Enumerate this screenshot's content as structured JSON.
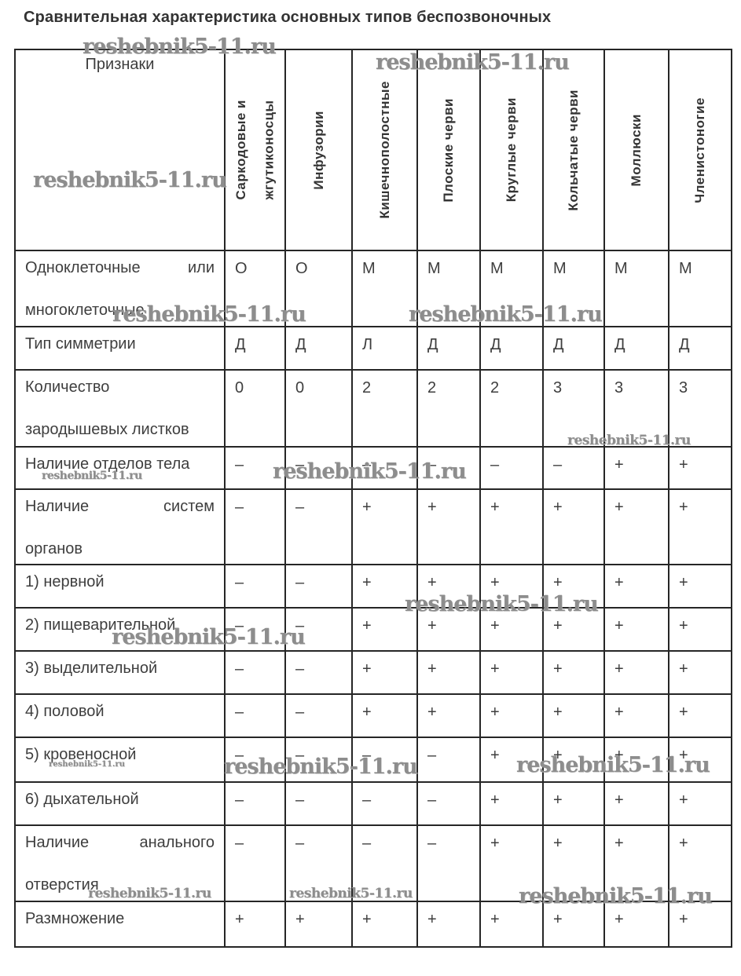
{
  "title": "Сравнительная характеристика основных типов беспозвоночных",
  "watermark_text": "reshebnik5-11.ru",
  "table": {
    "corner_header": "Признаки",
    "column_headers": [
      [
        "Саркодовые и",
        "жгутиконосцы"
      ],
      [
        "Инфузории"
      ],
      [
        "Кишечнополостные"
      ],
      [
        "Плоские черви"
      ],
      [
        "Круглые черви"
      ],
      [
        "Кольчатые черви"
      ],
      [
        "Моллюски"
      ],
      [
        "Членистоногие"
      ]
    ],
    "rows": [
      {
        "feature": [
          "Одноклеточные или",
          "многоклеточные"
        ],
        "values": [
          "О",
          "О",
          "М",
          "М",
          "М",
          "М",
          "М",
          "М"
        ]
      },
      {
        "feature": [
          "Тип симметрии"
        ],
        "values": [
          "Д",
          "Д",
          "Л",
          "Д",
          "Д",
          "Д",
          "Д",
          "Д"
        ]
      },
      {
        "feature": [
          "Количество",
          "зародышевых листков"
        ],
        "values": [
          "0",
          "0",
          "2",
          "2",
          "2",
          "3",
          "3",
          "3"
        ]
      },
      {
        "feature": [
          "Наличие отделов тела"
        ],
        "values": [
          "–",
          "–",
          "–",
          "–",
          "–",
          "–",
          "+",
          "+"
        ]
      },
      {
        "feature": [
          "Наличие систем",
          "органов"
        ],
        "values": [
          "–",
          "–",
          "+",
          "+",
          "+",
          "+",
          "+",
          "+"
        ]
      },
      {
        "feature": [
          "1) нервной"
        ],
        "values": [
          "–",
          "–",
          "+",
          "+",
          "+",
          "+",
          "+",
          "+"
        ]
      },
      {
        "feature": [
          "2) пищеварительной"
        ],
        "values": [
          "–",
          "–",
          "+",
          "+",
          "+",
          "+",
          "+",
          "+"
        ]
      },
      {
        "feature": [
          "3) выделительной"
        ],
        "values": [
          "–",
          "–",
          "+",
          "+",
          "+",
          "+",
          "+",
          "+"
        ]
      },
      {
        "feature": [
          "4) половой"
        ],
        "values": [
          "–",
          "–",
          "+",
          "+",
          "+",
          "+",
          "+",
          "+"
        ]
      },
      {
        "feature": [
          "5) кровеносной"
        ],
        "values": [
          "–",
          "–",
          "–",
          "–",
          "+",
          "+",
          "+",
          "+"
        ]
      },
      {
        "feature": [
          "6) дыхательной"
        ],
        "values": [
          "–",
          "–",
          "–",
          "–",
          "+",
          "+",
          "+",
          "+"
        ]
      },
      {
        "feature": [
          "Наличие анального",
          "отверстия"
        ],
        "values": [
          "–",
          "–",
          "–",
          "–",
          "+",
          "+",
          "+",
          "+"
        ]
      },
      {
        "feature": [
          "Размножение"
        ],
        "values": [
          "+",
          "+",
          "+",
          "+",
          "+",
          "+",
          "+",
          "+"
        ]
      }
    ]
  },
  "colors": {
    "text": "#3e3e3e",
    "border": "#262626",
    "watermark": "#8d8d8d",
    "background": "#ffffff"
  }
}
